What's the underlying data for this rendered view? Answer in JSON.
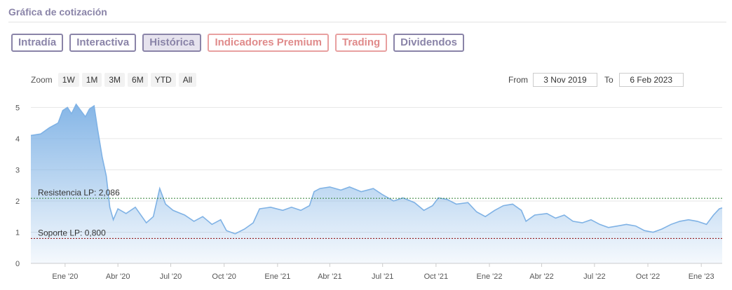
{
  "header": {
    "title": "Gráfica de cotización"
  },
  "tabs": [
    {
      "label": "Intradía",
      "active": false,
      "style": "default"
    },
    {
      "label": "Interactiva",
      "active": false,
      "style": "default"
    },
    {
      "label": "Histórica",
      "active": true,
      "style": "default"
    },
    {
      "label": "Indicadores Premium",
      "active": false,
      "style": "alt"
    },
    {
      "label": "Trading",
      "active": false,
      "style": "alt"
    },
    {
      "label": "Dividendos",
      "active": false,
      "style": "default"
    }
  ],
  "zoom": {
    "label": "Zoom",
    "buttons": [
      "1W",
      "1M",
      "3M",
      "6M",
      "YTD",
      "All"
    ]
  },
  "range": {
    "from_label": "From",
    "from_value": "3 Nov 2019",
    "to_label": "To",
    "to_value": "6 Feb 2023"
  },
  "colors": {
    "accent": "#8a84a8",
    "alt": "#e08b8b",
    "line": "#7fb2e5",
    "fill_top": "#7fb2e5",
    "resistance": "#2e7d32",
    "support": "#8b0000"
  },
  "chart_data": {
    "type": "area",
    "x_ticks": [
      "Ene '20",
      "Abr '20",
      "Jul '20",
      "Oct '20",
      "Ene '21",
      "Abr '21",
      "Jul '21",
      "Oct '21",
      "Ene '22",
      "Abr '22",
      "Jul '22",
      "Oct '22",
      "Ene '23"
    ],
    "x_tick_dates": [
      "2020-01-01",
      "2020-04-01",
      "2020-07-01",
      "2020-10-01",
      "2021-01-01",
      "2021-04-01",
      "2021-07-01",
      "2021-10-01",
      "2022-01-01",
      "2022-04-01",
      "2022-07-01",
      "2022-10-01",
      "2023-01-01"
    ],
    "y_ticks": [
      0,
      1,
      2,
      3,
      4,
      5
    ],
    "ylim": [
      0,
      5.3
    ],
    "xlim": [
      "2019-11-03",
      "2023-02-06"
    ],
    "grid": true,
    "series": [
      {
        "points": [
          [
            "2019-11-03",
            4.1
          ],
          [
            "2019-11-20",
            4.15
          ],
          [
            "2019-12-05",
            4.35
          ],
          [
            "2019-12-20",
            4.5
          ],
          [
            "2019-12-28",
            4.9
          ],
          [
            "2020-01-05",
            5.0
          ],
          [
            "2020-01-12",
            4.8
          ],
          [
            "2020-01-20",
            5.1
          ],
          [
            "2020-01-28",
            4.9
          ],
          [
            "2020-02-05",
            4.7
          ],
          [
            "2020-02-12",
            4.95
          ],
          [
            "2020-02-20",
            5.05
          ],
          [
            "2020-02-26",
            4.3
          ],
          [
            "2020-03-05",
            3.4
          ],
          [
            "2020-03-12",
            2.8
          ],
          [
            "2020-03-18",
            1.8
          ],
          [
            "2020-03-24",
            1.4
          ],
          [
            "2020-04-01",
            1.75
          ],
          [
            "2020-04-15",
            1.6
          ],
          [
            "2020-05-01",
            1.8
          ],
          [
            "2020-05-20",
            1.3
          ],
          [
            "2020-06-01",
            1.5
          ],
          [
            "2020-06-12",
            2.4
          ],
          [
            "2020-06-22",
            1.9
          ],
          [
            "2020-07-05",
            1.7
          ],
          [
            "2020-07-25",
            1.55
          ],
          [
            "2020-08-10",
            1.35
          ],
          [
            "2020-08-25",
            1.5
          ],
          [
            "2020-09-10",
            1.25
          ],
          [
            "2020-09-25",
            1.4
          ],
          [
            "2020-10-05",
            1.05
          ],
          [
            "2020-10-20",
            0.95
          ],
          [
            "2020-11-05",
            1.1
          ],
          [
            "2020-11-20",
            1.3
          ],
          [
            "2020-12-01",
            1.75
          ],
          [
            "2020-12-20",
            1.8
          ],
          [
            "2021-01-10",
            1.7
          ],
          [
            "2021-01-25",
            1.8
          ],
          [
            "2021-02-10",
            1.7
          ],
          [
            "2021-02-25",
            1.85
          ],
          [
            "2021-03-05",
            2.3
          ],
          [
            "2021-03-15",
            2.4
          ],
          [
            "2021-04-01",
            2.45
          ],
          [
            "2021-04-20",
            2.35
          ],
          [
            "2021-05-05",
            2.45
          ],
          [
            "2021-05-25",
            2.3
          ],
          [
            "2021-06-15",
            2.4
          ],
          [
            "2021-07-01",
            2.2
          ],
          [
            "2021-07-20",
            2.0
          ],
          [
            "2021-08-05",
            2.1
          ],
          [
            "2021-08-25",
            1.95
          ],
          [
            "2021-09-10",
            1.7
          ],
          [
            "2021-09-25",
            1.85
          ],
          [
            "2021-10-05",
            2.1
          ],
          [
            "2021-10-20",
            2.05
          ],
          [
            "2021-11-05",
            1.9
          ],
          [
            "2021-11-25",
            1.95
          ],
          [
            "2021-12-10",
            1.65
          ],
          [
            "2021-12-25",
            1.5
          ],
          [
            "2022-01-10",
            1.7
          ],
          [
            "2022-01-25",
            1.85
          ],
          [
            "2022-02-10",
            1.9
          ],
          [
            "2022-02-25",
            1.7
          ],
          [
            "2022-03-05",
            1.35
          ],
          [
            "2022-03-20",
            1.55
          ],
          [
            "2022-04-10",
            1.6
          ],
          [
            "2022-04-25",
            1.45
          ],
          [
            "2022-05-10",
            1.55
          ],
          [
            "2022-05-25",
            1.35
          ],
          [
            "2022-06-10",
            1.3
          ],
          [
            "2022-06-25",
            1.4
          ],
          [
            "2022-07-10",
            1.25
          ],
          [
            "2022-07-25",
            1.15
          ],
          [
            "2022-08-10",
            1.2
          ],
          [
            "2022-08-25",
            1.25
          ],
          [
            "2022-09-10",
            1.2
          ],
          [
            "2022-09-25",
            1.05
          ],
          [
            "2022-10-10",
            1.0
          ],
          [
            "2022-10-25",
            1.1
          ],
          [
            "2022-11-10",
            1.25
          ],
          [
            "2022-11-25",
            1.35
          ],
          [
            "2022-12-10",
            1.4
          ],
          [
            "2022-12-25",
            1.35
          ],
          [
            "2023-01-10",
            1.25
          ],
          [
            "2023-01-22",
            1.55
          ],
          [
            "2023-02-01",
            1.75
          ],
          [
            "2023-02-06",
            1.78
          ]
        ]
      }
    ],
    "reference_lines": [
      {
        "label": "Resistencia LP: 2,086",
        "value": 2.086,
        "color": "#2e7d32"
      },
      {
        "label": "Soporte LP: 0,800",
        "value": 0.8,
        "color": "#8b0000"
      }
    ]
  }
}
